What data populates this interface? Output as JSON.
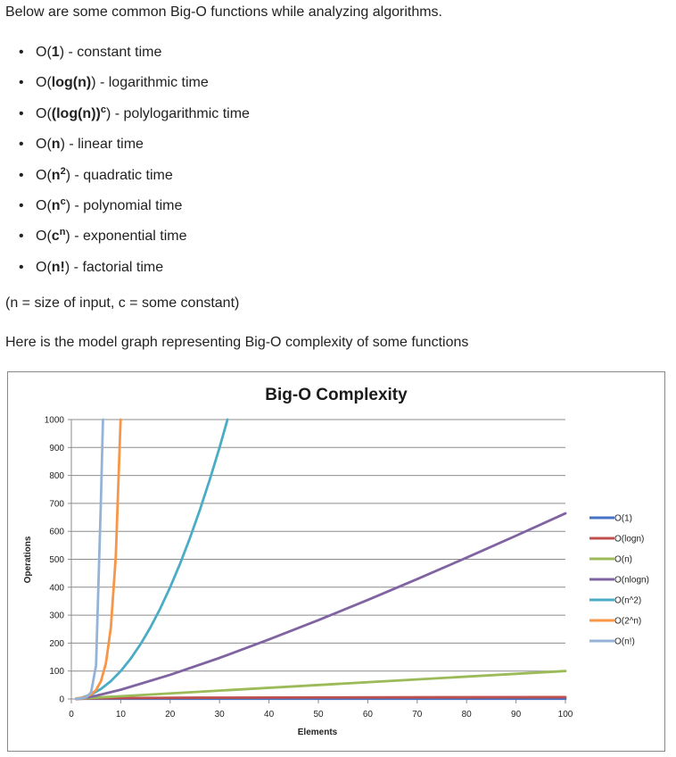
{
  "intro": "Below are some common Big-O functions while analyzing algorithms.",
  "functions": [
    {
      "pre": "O(",
      "b": "1",
      "sup": "",
      "post": ") - constant time"
    },
    {
      "pre": "O(",
      "b": "log(n)",
      "sup": "",
      "post": ") - logarithmic time"
    },
    {
      "pre": "O(",
      "b": "(log(n))",
      "sup": "c",
      "post": ") - polylogarithmic time"
    },
    {
      "pre": "O(",
      "b": "n",
      "sup": "",
      "post": ") - linear time"
    },
    {
      "pre": "O(",
      "b": "n",
      "sup": "2",
      "post": ") - quadratic time"
    },
    {
      "pre": "O(",
      "b": "n",
      "sup": "c",
      "post": ") - polynomial time"
    },
    {
      "pre": "O(",
      "b": "c",
      "sup": "n",
      "post": ") - exponential time"
    },
    {
      "pre": "O(",
      "b": "n!",
      "sup": "",
      "post": ") - factorial time"
    }
  ],
  "note": "(n = size of input, c = some constant)",
  "lead": "Here is the model graph representing Big-O complexity of some functions",
  "chart_data": {
    "type": "line",
    "title": "Big-O Complexity",
    "xlabel": "Elements",
    "ylabel": "Operations",
    "xlim": [
      0,
      100
    ],
    "ylim": [
      0,
      1000
    ],
    "xticks": [
      0,
      10,
      20,
      30,
      40,
      50,
      60,
      70,
      80,
      90,
      100
    ],
    "yticks": [
      0,
      100,
      200,
      300,
      400,
      500,
      600,
      700,
      800,
      900,
      1000
    ],
    "grid": "horizontal",
    "legend_position": "right",
    "series": [
      {
        "name": "O(1)",
        "color": "#4472C4",
        "x": [
          1,
          100
        ],
        "y": [
          1,
          1
        ]
      },
      {
        "name": "O(logn)",
        "color": "#C0504D",
        "x": [
          1,
          2,
          5,
          10,
          25,
          50,
          75,
          100
        ],
        "y": [
          0,
          1,
          2.3,
          3.3,
          4.6,
          5.6,
          6.2,
          6.6
        ]
      },
      {
        "name": "O(n)",
        "color": "#9BBB59",
        "x": [
          1,
          100
        ],
        "y": [
          1,
          100
        ]
      },
      {
        "name": "O(nlogn)",
        "color": "#8064A2",
        "x": [
          1,
          2,
          5,
          10,
          20,
          30,
          40,
          50,
          60,
          70,
          80,
          90,
          100
        ],
        "y": [
          0,
          2,
          11.6,
          33.2,
          86.4,
          147,
          212.9,
          282.2,
          354.4,
          429,
          505.8,
          584.3,
          664.4
        ]
      },
      {
        "name": "O(n^2)",
        "color": "#4BACC6",
        "x": [
          1,
          2,
          4,
          6,
          8,
          10,
          12,
          14,
          16,
          18,
          20,
          22,
          24,
          26,
          28,
          30,
          31.6
        ],
        "y": [
          1,
          4,
          16,
          36,
          64,
          100,
          144,
          196,
          256,
          324,
          400,
          484,
          576,
          676,
          784,
          900,
          1000
        ]
      },
      {
        "name": "O(2^n)",
        "color": "#F79646",
        "x": [
          1,
          2,
          3,
          4,
          5,
          6,
          7,
          8,
          9,
          9.97
        ],
        "y": [
          2,
          4,
          8,
          16,
          32,
          64,
          128,
          256,
          512,
          1000
        ]
      },
      {
        "name": "O(n!)",
        "color": "#95B3D7",
        "x": [
          1,
          2,
          3,
          4,
          5,
          6,
          6.4
        ],
        "y": [
          1,
          2,
          6,
          24,
          120,
          720,
          1000
        ]
      }
    ]
  }
}
